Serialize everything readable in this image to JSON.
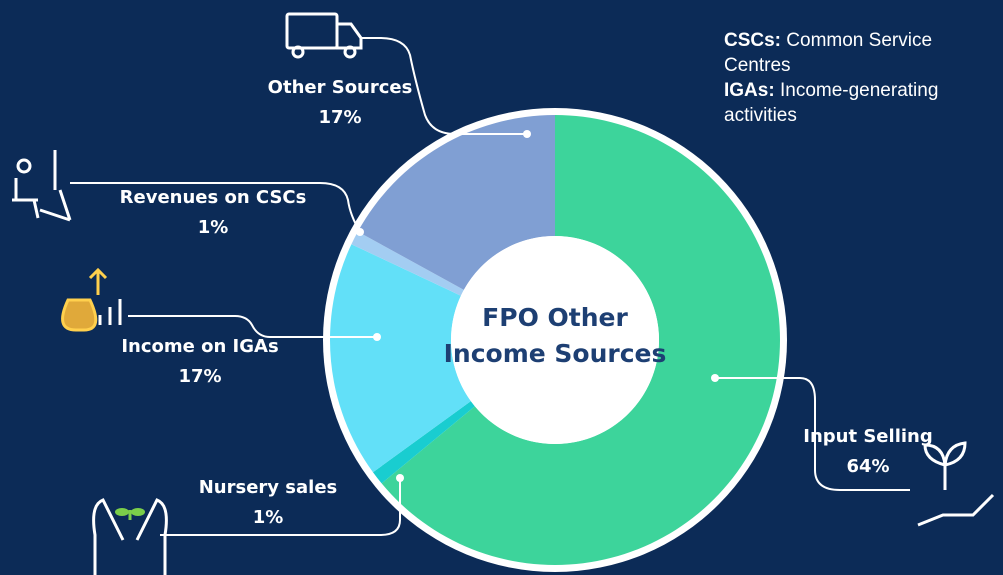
{
  "chart_data": {
    "type": "donut",
    "title": "FPO Other Income Sources",
    "categories": [
      "Input Selling",
      "Nursery sales",
      "Income on IGAs",
      "Revenues on CSCs",
      "Other Sources"
    ],
    "values": [
      64,
      1,
      17,
      1,
      17
    ],
    "value_labels": [
      "64%",
      "1%",
      "17%",
      "1%",
      "17%"
    ],
    "colors": [
      "#3dd49b",
      "#19cdd0",
      "#62e0f8",
      "#a3cdf2",
      "#809fd3"
    ],
    "notes": [
      {
        "term": "CSCs:",
        "text": "Common Service Centres"
      },
      {
        "term": "IGAs:",
        "text": "Income-generating activities"
      }
    ]
  }
}
